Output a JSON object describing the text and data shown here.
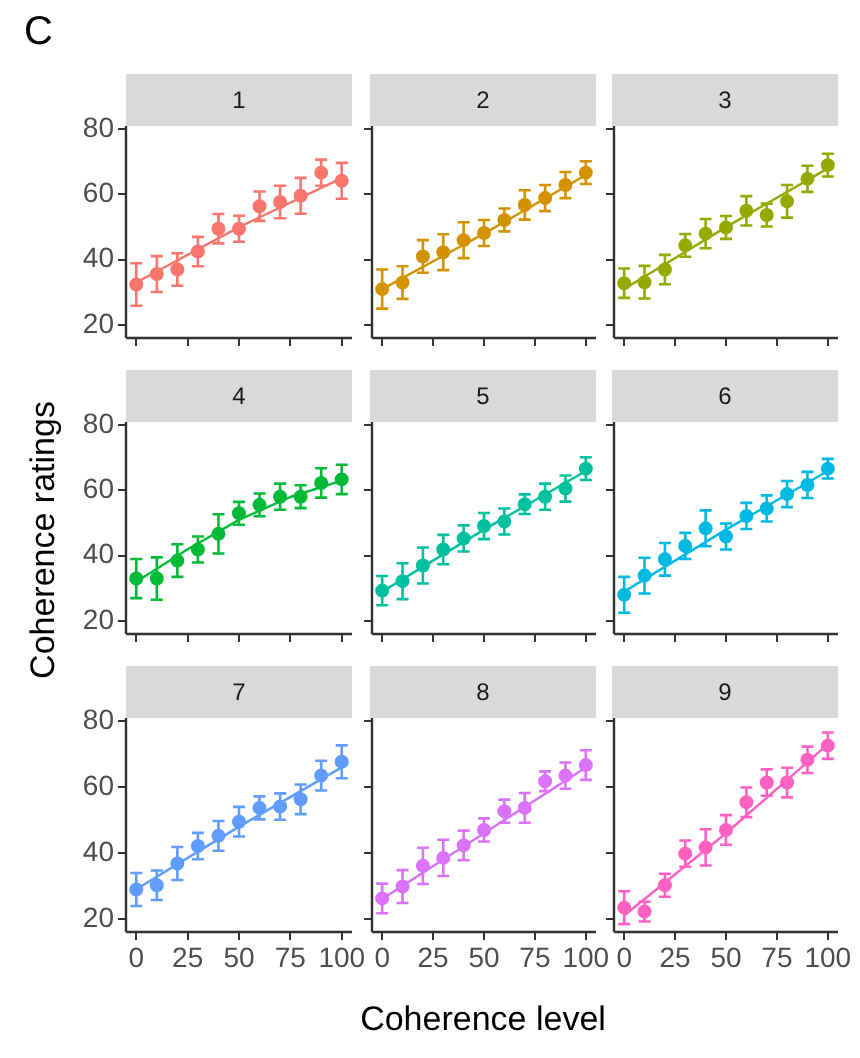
{
  "chart_data": [
    {
      "type": "scatter",
      "title": "1",
      "annotations": [
        "C"
      ],
      "tick_labels": "y",
      "marker": "circle",
      "xlim": [
        -5,
        105
      ],
      "ylim": [
        16,
        81
      ],
      "xticks": [
        0,
        25,
        50,
        75,
        100
      ],
      "yticks": [
        20,
        40,
        60,
        80
      ],
      "x": [
        0,
        10,
        20,
        30,
        40,
        50,
        60,
        70,
        80,
        90,
        100
      ],
      "series": [
        {
          "color": "#f8766d",
          "values": [
            32.4,
            35.6,
            37,
            42.5,
            49.5,
            49.5,
            56.4,
            57.7,
            59.6,
            66.7,
            64.2
          ],
          "errors": [
            6.5,
            5.5,
            5,
            4.5,
            4.5,
            4,
            4.5,
            5,
            5.5,
            4,
            5.5
          ]
        },
        {
          "type": "line",
          "marker": "none",
          "color": "#f8766d",
          "x": [
            0,
            50,
            100
          ],
          "values": [
            33,
            50,
            65
          ]
        }
      ]
    },
    {
      "type": "scatter",
      "title": "2",
      "tick_labels": false,
      "marker": "circle",
      "xlim": [
        -5,
        105
      ],
      "ylim": [
        16,
        81
      ],
      "xticks": [
        0,
        25,
        50,
        75,
        100
      ],
      "yticks": [
        20,
        40,
        60,
        80
      ],
      "x": [
        0,
        10,
        20,
        30,
        40,
        50,
        60,
        70,
        80,
        90,
        100
      ],
      "series": [
        {
          "color": "#d39200",
          "values": [
            31,
            33,
            41,
            42.3,
            46,
            48.2,
            52.2,
            56.8,
            58.9,
            62.9,
            66.7
          ],
          "errors": [
            6,
            5,
            5,
            5.5,
            5.5,
            4,
            3.5,
            4.5,
            4,
            4,
            3.5
          ]
        },
        {
          "type": "line",
          "marker": "none",
          "color": "#d39200",
          "x": [
            0,
            50,
            100
          ],
          "values": [
            31,
            48,
            66
          ]
        }
      ]
    },
    {
      "type": "scatter",
      "title": "3",
      "tick_labels": false,
      "marker": "circle",
      "xlim": [
        -5,
        105
      ],
      "ylim": [
        16,
        81
      ],
      "xticks": [
        0,
        25,
        50,
        75,
        100
      ],
      "yticks": [
        20,
        40,
        60,
        80
      ],
      "x": [
        0,
        10,
        20,
        30,
        40,
        50,
        60,
        70,
        80,
        90,
        100
      ],
      "series": [
        {
          "color": "#93aa00",
          "values": [
            32.8,
            33.1,
            37,
            44.4,
            48,
            49.9,
            55,
            53.7,
            57.9,
            64.8,
            69
          ],
          "errors": [
            4.5,
            5,
            4.5,
            3.5,
            4.5,
            3.5,
            4.5,
            3.5,
            5,
            4,
            3.5
          ]
        },
        {
          "type": "line",
          "marker": "none",
          "color": "#93aa00",
          "x": [
            0,
            50,
            100
          ],
          "values": [
            31,
            50,
            68
          ]
        }
      ]
    },
    {
      "type": "scatter",
      "title": "4",
      "ylabel": "Coherence ratings",
      "tick_labels": "y",
      "marker": "circle",
      "xlim": [
        -5,
        105
      ],
      "ylim": [
        16,
        81
      ],
      "xticks": [
        0,
        25,
        50,
        75,
        100
      ],
      "yticks": [
        20,
        40,
        60,
        80
      ],
      "x": [
        0,
        10,
        20,
        30,
        40,
        50,
        60,
        70,
        80,
        90,
        100
      ],
      "series": [
        {
          "color": "#00ba38",
          "values": [
            33,
            33,
            38.5,
            41.9,
            46.7,
            53,
            55.6,
            58.1,
            58.1,
            62.3,
            63.4
          ],
          "errors": [
            6,
            6.5,
            5,
            4,
            6,
            3.5,
            3.5,
            4,
            3.5,
            4.5,
            4.5
          ]
        },
        {
          "type": "line",
          "marker": "none",
          "color": "#00ba38",
          "x": [
            0,
            25,
            50,
            75,
            100
          ],
          "values": [
            32,
            42,
            51,
            58,
            63
          ]
        }
      ]
    },
    {
      "type": "scatter",
      "title": "5",
      "tick_labels": false,
      "marker": "circle",
      "xlim": [
        -5,
        105
      ],
      "ylim": [
        16,
        81
      ],
      "xticks": [
        0,
        25,
        50,
        75,
        100
      ],
      "yticks": [
        20,
        40,
        60,
        80
      ],
      "x": [
        0,
        10,
        20,
        30,
        40,
        50,
        60,
        70,
        80,
        90,
        100
      ],
      "series": [
        {
          "color": "#00c19f",
          "values": [
            29.3,
            32.2,
            37,
            41.9,
            45.3,
            49.1,
            50.5,
            55.8,
            58.1,
            60.6,
            66.7
          ],
          "errors": [
            4.5,
            5.5,
            5.5,
            4.5,
            4,
            4,
            4,
            3,
            4,
            4,
            3.5
          ]
        },
        {
          "type": "line",
          "marker": "none",
          "color": "#00c19f",
          "x": [
            0,
            50,
            100
          ],
          "values": [
            29,
            48,
            66
          ]
        }
      ]
    },
    {
      "type": "scatter",
      "title": "6",
      "tick_labels": false,
      "marker": "circle",
      "xlim": [
        -5,
        105
      ],
      "ylim": [
        16,
        81
      ],
      "xticks": [
        0,
        25,
        50,
        75,
        100
      ],
      "yticks": [
        20,
        40,
        60,
        80
      ],
      "x": [
        0,
        10,
        20,
        30,
        40,
        50,
        60,
        70,
        80,
        90,
        100
      ],
      "series": [
        {
          "color": "#00b9e3",
          "values": [
            28,
            33.9,
            38.9,
            43,
            48.4,
            45.9,
            52.2,
            54.5,
            58.9,
            61.7,
            66.7
          ],
          "errors": [
            5.5,
            5.5,
            5,
            4,
            5.5,
            4,
            4,
            4,
            4,
            4,
            3
          ]
        },
        {
          "type": "line",
          "marker": "none",
          "color": "#00b9e3",
          "x": [
            0,
            50,
            100
          ],
          "values": [
            29,
            48,
            66
          ]
        }
      ]
    },
    {
      "type": "scatter",
      "title": "7",
      "marker": "circle",
      "xlim": [
        -5,
        105
      ],
      "ylim": [
        16,
        81
      ],
      "xticks": [
        0,
        25,
        50,
        75,
        100
      ],
      "yticks": [
        20,
        40,
        60,
        80
      ],
      "x": [
        0,
        10,
        20,
        30,
        40,
        50,
        60,
        70,
        80,
        90,
        100
      ],
      "series": [
        {
          "color": "#619cff",
          "values": [
            28.9,
            30.2,
            36.8,
            42.1,
            45.2,
            49.5,
            53.7,
            54.1,
            56.3,
            63.5,
            67.7
          ],
          "errors": [
            5,
            4.5,
            5,
            4,
            4.5,
            4.5,
            3.5,
            4,
            4.5,
            4.5,
            5
          ]
        },
        {
          "type": "line",
          "marker": "none",
          "color": "#619cff",
          "x": [
            0,
            50,
            100
          ],
          "values": [
            29,
            48,
            66
          ]
        }
      ]
    },
    {
      "type": "scatter",
      "title": "8",
      "xlabel": "Coherence level",
      "tick_labels": "x",
      "marker": "circle",
      "xlim": [
        -5,
        105
      ],
      "ylim": [
        16,
        81
      ],
      "xticks": [
        0,
        25,
        50,
        75,
        100
      ],
      "yticks": [
        20,
        40,
        60,
        80
      ],
      "x": [
        0,
        10,
        20,
        30,
        40,
        50,
        60,
        70,
        80,
        90,
        100
      ],
      "series": [
        {
          "color": "#db72fb",
          "values": [
            26.2,
            29.8,
            36.1,
            38.5,
            42.3,
            47,
            52.7,
            53.7,
            61.8,
            63.5,
            66.7
          ],
          "errors": [
            4.5,
            5,
            5.5,
            5.5,
            4.5,
            3.5,
            3.5,
            4.5,
            3,
            4,
            4.5
          ]
        },
        {
          "type": "line",
          "marker": "none",
          "color": "#db72fb",
          "x": [
            0,
            50,
            100
          ],
          "values": [
            26,
            46,
            66
          ]
        }
      ]
    },
    {
      "type": "scatter",
      "title": "9",
      "tick_labels": "x",
      "marker": "circle",
      "xlim": [
        -5,
        105
      ],
      "ylim": [
        16,
        81
      ],
      "xticks": [
        0,
        25,
        50,
        75,
        100
      ],
      "yticks": [
        20,
        40,
        60,
        80
      ],
      "x": [
        0,
        10,
        20,
        30,
        40,
        50,
        60,
        70,
        80,
        90,
        100
      ],
      "series": [
        {
          "color": "#ff61c3",
          "values": [
            23.4,
            22.2,
            30.2,
            39.8,
            41.7,
            47,
            55.4,
            61.4,
            61.4,
            68.3,
            72.6
          ],
          "errors": [
            5,
            3,
            3.5,
            4,
            5.5,
            4.5,
            4.5,
            4,
            4.5,
            4,
            4
          ]
        },
        {
          "type": "line",
          "marker": "none",
          "color": "#ff61c3",
          "x": [
            0,
            50,
            100
          ],
          "values": [
            21,
            46,
            73
          ]
        }
      ]
    }
  ]
}
